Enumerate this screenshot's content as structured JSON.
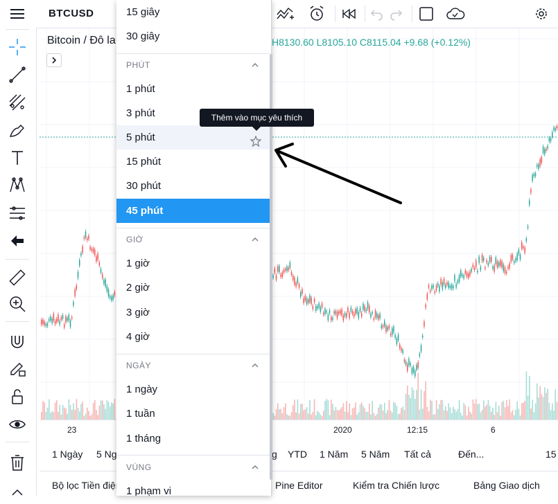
{
  "header": {
    "symbol": "BTCUSD"
  },
  "legend": {
    "title": "Bitcoin / Đô la",
    "ohlc": "H8130.60  L8105.10  C8115.04  +9.68 (+0.12%)"
  },
  "left_toolbar": {
    "icons": [
      "menu-icon",
      "crosshair-icon",
      "trend-line-icon",
      "fib-icon",
      "brush-icon",
      "text-icon",
      "pattern-icon",
      "measure-projection-icon",
      "back-arrow-icon",
      "ruler-icon",
      "zoom-in-icon",
      "magnet-icon",
      "lock-drawing-icon",
      "lock-icon",
      "eye-icon",
      "trash-icon"
    ]
  },
  "top_toolbar": {
    "icons": [
      "indicators-icon",
      "alert-icon",
      "replay-icon",
      "undo-icon",
      "redo-icon",
      "fullscreen-icon",
      "cloud-save-icon",
      "settings-icon"
    ]
  },
  "dropdown": {
    "top_items": [
      "15 giây",
      "30 giây"
    ],
    "sections": [
      {
        "title": "PHÚT",
        "items": [
          "1 phút",
          "3 phút",
          "5 phút",
          "15 phút",
          "30 phút",
          "45 phút"
        ]
      },
      {
        "title": "GIỜ",
        "items": [
          "1 giờ",
          "2 giờ",
          "3 giờ",
          "4 giờ"
        ]
      },
      {
        "title": "NGÀY",
        "items": [
          "1 ngày",
          "1 tuần",
          "1 tháng"
        ]
      },
      {
        "title": "VÙNG",
        "items": [
          "1 phạm vi"
        ]
      }
    ],
    "hovered": "5 phút",
    "selected": "45 phút"
  },
  "tooltip": "Thêm vào mục yêu thích",
  "time_axis": {
    "labels": [
      "23",
      "2020",
      "12:15",
      "6"
    ]
  },
  "range_bar": {
    "items": [
      "1 Ngày",
      "5 Ng",
      "g",
      "YTD",
      "1 Năm",
      "5 Năm",
      "Tất cả",
      "Đến...",
      "15"
    ]
  },
  "bottom_tabs": {
    "items": [
      "Bộ lọc Tiền điện tử",
      "Pine Editor",
      "Kiểm tra Chiến lược",
      "Bảng Giao dịch"
    ]
  },
  "colors": {
    "accent": "#2196f3",
    "up": "#26a69a",
    "down": "#ef5350"
  }
}
